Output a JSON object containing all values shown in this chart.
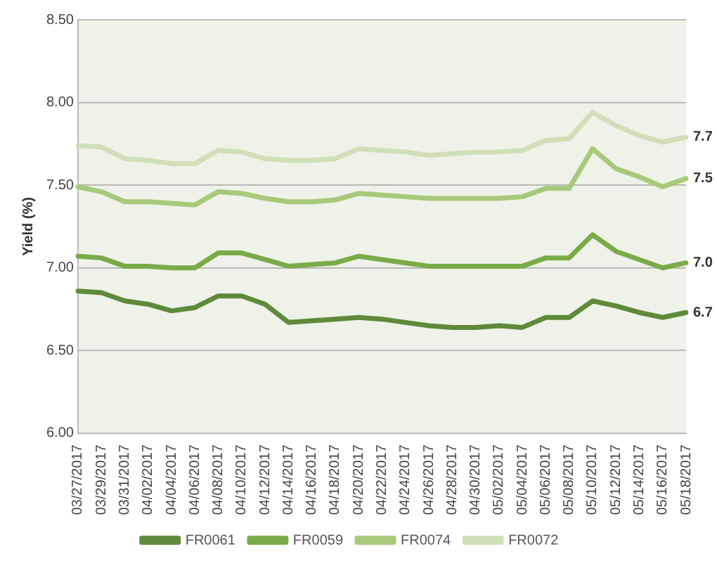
{
  "chart_data": {
    "type": "line",
    "ylabel": "Yield (%)",
    "categories": [
      "03/27/2017",
      "03/29/2017",
      "03/31/2017",
      "04/02/2017",
      "04/04/2017",
      "04/06/2017",
      "04/08/2017",
      "04/10/2017",
      "04/12/2017",
      "04/14/2017",
      "04/16/2017",
      "04/18/2017",
      "04/20/2017",
      "04/22/2017",
      "04/24/2017",
      "04/26/2017",
      "04/28/2017",
      "04/30/2017",
      "05/02/2017",
      "05/04/2017",
      "05/06/2017",
      "05/08/2017",
      "05/10/2017",
      "05/12/2017",
      "05/14/2017",
      "05/16/2017",
      "05/18/2017"
    ],
    "series": [
      {
        "name": "FR0061",
        "color": "#5e8a3a",
        "values": [
          6.86,
          6.85,
          6.8,
          6.78,
          6.74,
          6.76,
          6.83,
          6.83,
          6.78,
          6.67,
          6.68,
          6.69,
          6.7,
          6.69,
          6.67,
          6.65,
          6.64,
          6.64,
          6.65,
          6.64,
          6.7,
          6.7,
          6.8,
          6.77,
          6.73,
          6.7,
          6.73
        ]
      },
      {
        "name": "FR0059",
        "color": "#7aab48",
        "values": [
          7.07,
          7.06,
          7.01,
          7.01,
          7.0,
          7.0,
          7.09,
          7.09,
          7.05,
          7.01,
          7.02,
          7.03,
          7.07,
          7.05,
          7.03,
          7.01,
          7.01,
          7.01,
          7.01,
          7.01,
          7.06,
          7.06,
          7.2,
          7.1,
          7.05,
          7.0,
          7.03
        ]
      },
      {
        "name": "FR0074",
        "color": "#a7c97a",
        "values": [
          7.49,
          7.46,
          7.4,
          7.4,
          7.39,
          7.38,
          7.46,
          7.45,
          7.42,
          7.4,
          7.4,
          7.41,
          7.45,
          7.44,
          7.43,
          7.42,
          7.42,
          7.42,
          7.42,
          7.43,
          7.48,
          7.48,
          7.72,
          7.6,
          7.55,
          7.49,
          7.54
        ]
      },
      {
        "name": "FR0072",
        "color": "#cfdfb8",
        "values": [
          7.74,
          7.73,
          7.66,
          7.65,
          7.63,
          7.63,
          7.71,
          7.7,
          7.66,
          7.65,
          7.65,
          7.66,
          7.72,
          7.71,
          7.7,
          7.68,
          7.69,
          7.7,
          7.7,
          7.71,
          7.77,
          7.78,
          7.94,
          7.86,
          7.8,
          7.76,
          7.79
        ]
      }
    ],
    "ylim": [
      6,
      8.5
    ],
    "yticks": [
      {
        "value": 6,
        "label": "6.00"
      },
      {
        "value": 6.5,
        "label": "6.50"
      },
      {
        "value": 7,
        "label": "7.00"
      },
      {
        "value": 7.5,
        "label": "7.50"
      },
      {
        "value": 8,
        "label": "8.00"
      },
      {
        "value": 8.5,
        "label": "8.50"
      }
    ],
    "grid": "y",
    "legend": "bottom",
    "marker": "none",
    "line_style": "solid",
    "annotations": [
      {
        "text": "6.7",
        "x": "05/18/2017",
        "y": 6.73
      },
      {
        "text": "7.0",
        "x": "05/18/2017",
        "y": 7.03
      },
      {
        "text": "7.5",
        "x": "05/18/2017",
        "y": 7.54
      },
      {
        "text": "7.7",
        "x": "05/18/2017",
        "y": 7.79
      }
    ]
  }
}
